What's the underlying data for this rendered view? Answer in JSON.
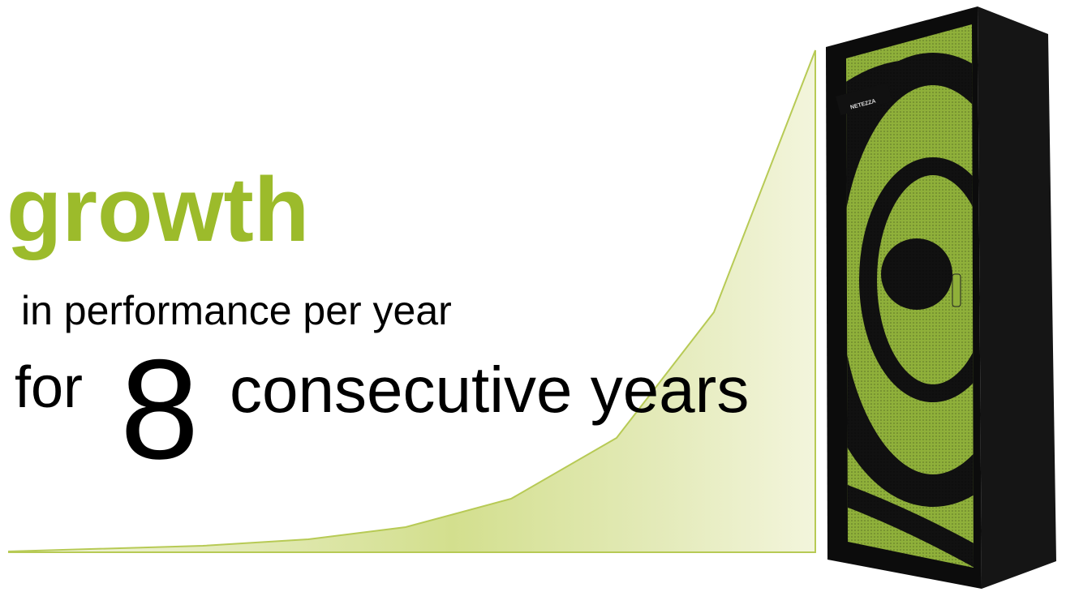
{
  "headline": "growth",
  "subline": "in performance per year",
  "statement": {
    "prefix": "for",
    "number": 8,
    "suffix": "consecutive years"
  },
  "logo": "NETEZZA"
}
